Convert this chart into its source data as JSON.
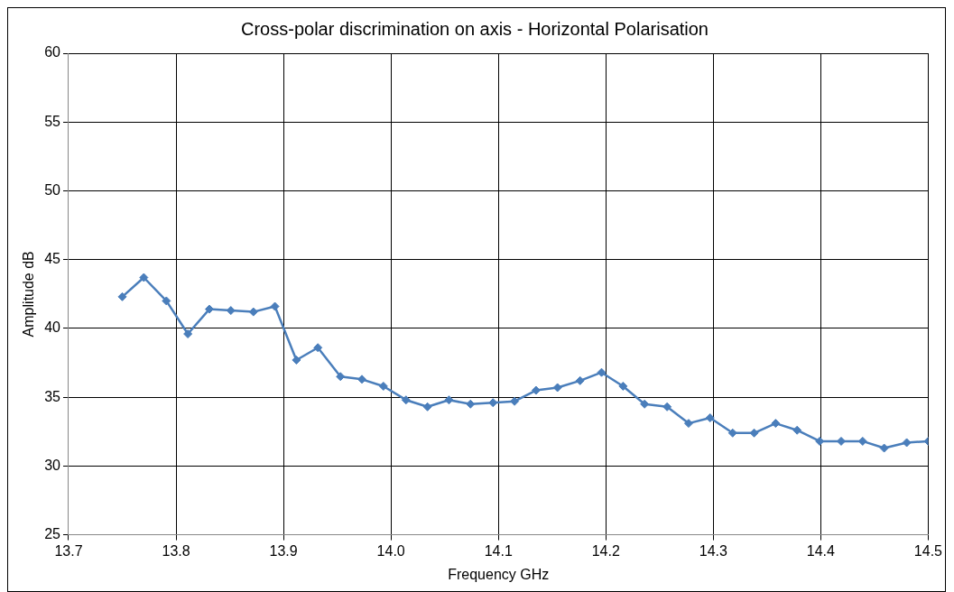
{
  "chart_data": {
    "type": "line",
    "title": "Cross-polar discrimination on axis - Horizontal Polarisation",
    "xlabel": "Frequency GHz",
    "ylabel": "Amplitude dB",
    "x": [
      13.75,
      13.77,
      13.791,
      13.811,
      13.831,
      13.851,
      13.872,
      13.892,
      13.912,
      13.932,
      13.953,
      13.973,
      13.993,
      14.014,
      14.034,
      14.054,
      14.074,
      14.095,
      14.115,
      14.135,
      14.155,
      14.176,
      14.196,
      14.216,
      14.236,
      14.257,
      14.277,
      14.297,
      14.318,
      14.338,
      14.358,
      14.378,
      14.399,
      14.419,
      14.439,
      14.459,
      14.48,
      14.5
    ],
    "series": [
      {
        "color": "#4a7ebb",
        "values": [
          42.3,
          43.7,
          42.0,
          39.6,
          41.4,
          41.3,
          41.2,
          41.6,
          37.7,
          38.6,
          36.5,
          36.3,
          35.8,
          34.8,
          34.3,
          34.8,
          34.5,
          34.6,
          34.7,
          35.5,
          35.7,
          36.2,
          36.8,
          35.8,
          34.5,
          34.3,
          33.1,
          33.5,
          32.4,
          32.4,
          33.1,
          32.6,
          31.8,
          31.8,
          31.8,
          31.3,
          31.7,
          31.8
        ]
      }
    ],
    "xlim": [
      13.7,
      14.5
    ],
    "xticks": [
      {
        "value": 13.7,
        "label": "13.7"
      },
      {
        "value": 13.8,
        "label": "13.8"
      },
      {
        "value": 13.9,
        "label": "13.9"
      },
      {
        "value": 14.0,
        "label": "14.0"
      },
      {
        "value": 14.1,
        "label": "14.1"
      },
      {
        "value": 14.2,
        "label": "14.2"
      },
      {
        "value": 14.3,
        "label": "14.3"
      },
      {
        "value": 14.4,
        "label": "14.4"
      },
      {
        "value": 14.5,
        "label": "14.5"
      }
    ],
    "ylim": [
      25,
      60
    ],
    "yticks": [
      25,
      30,
      35,
      40,
      45,
      50,
      55,
      60
    ],
    "grid": true,
    "legend": false,
    "marker": "diamond",
    "line_style": "solid"
  }
}
